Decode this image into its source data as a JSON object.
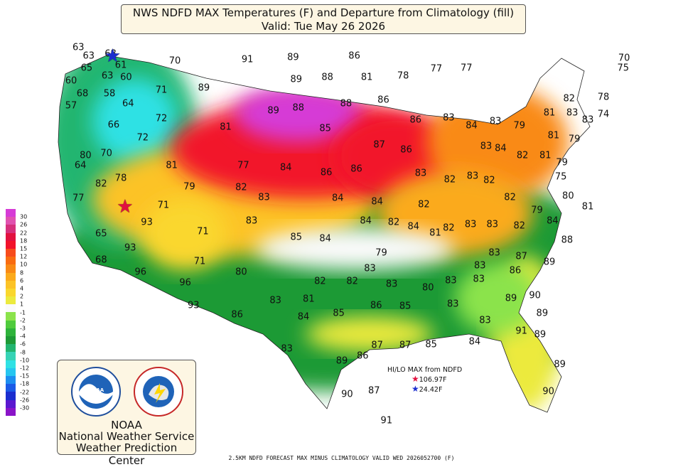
{
  "title": {
    "line1": "NWS NDFD MAX Temperatures (F) and Departure from Climatology (fill)",
    "line2": "Valid: Tue May 26 2026"
  },
  "temperature_labels": [
    {
      "text": "63",
      "lon": -124.3,
      "lat": 48.3
    },
    {
      "text": "63",
      "lon": -123.3,
      "lat": 47.6
    },
    {
      "text": "68",
      "lon": -121.2,
      "lat": 47.8
    },
    {
      "text": "65",
      "lon": -123.5,
      "lat": 46.6
    },
    {
      "text": "61",
      "lon": -120.2,
      "lat": 46.8
    },
    {
      "text": "70",
      "lon": -115.0,
      "lat": 47.2
    },
    {
      "text": "91",
      "lon": -108.0,
      "lat": 47.3
    },
    {
      "text": "89",
      "lon": -103.6,
      "lat": 47.5
    },
    {
      "text": "86",
      "lon": -97.7,
      "lat": 47.6
    },
    {
      "text": "60",
      "lon": -125.0,
      "lat": 45.5
    },
    {
      "text": "63",
      "lon": -121.5,
      "lat": 45.9
    },
    {
      "text": "60",
      "lon": -119.7,
      "lat": 45.8
    },
    {
      "text": "68",
      "lon": -123.9,
      "lat": 44.4
    },
    {
      "text": "58",
      "lon": -121.3,
      "lat": 44.4
    },
    {
      "text": "71",
      "lon": -116.3,
      "lat": 44.7
    },
    {
      "text": "89",
      "lon": -112.2,
      "lat": 44.9
    },
    {
      "text": "89",
      "lon": -103.3,
      "lat": 45.6
    },
    {
      "text": "88",
      "lon": -100.3,
      "lat": 45.8
    },
    {
      "text": "81",
      "lon": -96.5,
      "lat": 45.8
    },
    {
      "text": "78",
      "lon": -93.0,
      "lat": 45.9
    },
    {
      "text": "77",
      "lon": -89.8,
      "lat": 46.5
    },
    {
      "text": "57",
      "lon": -125.0,
      "lat": 43.4
    },
    {
      "text": "64",
      "lon": -119.5,
      "lat": 43.6
    },
    {
      "text": "72",
      "lon": -116.3,
      "lat": 42.3
    },
    {
      "text": "89",
      "lon": -105.5,
      "lat": 43.0
    },
    {
      "text": "88",
      "lon": -103.1,
      "lat": 43.2
    },
    {
      "text": "88",
      "lon": -98.5,
      "lat": 43.6
    },
    {
      "text": "86",
      "lon": -94.9,
      "lat": 43.9
    },
    {
      "text": "66",
      "lon": -120.9,
      "lat": 41.8
    },
    {
      "text": "72",
      "lon": -118.1,
      "lat": 40.7
    },
    {
      "text": "81",
      "lon": -110.1,
      "lat": 41.6
    },
    {
      "text": "85",
      "lon": -100.5,
      "lat": 41.5
    },
    {
      "text": "86",
      "lon": -91.8,
      "lat": 42.2
    },
    {
      "text": "83",
      "lon": -88.6,
      "lat": 42.4
    },
    {
      "text": "84",
      "lon": -86.4,
      "lat": 41.7
    },
    {
      "text": "83",
      "lon": -84.1,
      "lat": 42.1
    },
    {
      "text": "87",
      "lon": -95.3,
      "lat": 40.1
    },
    {
      "text": "86",
      "lon": -92.7,
      "lat": 39.7
    },
    {
      "text": "80",
      "lon": -123.6,
      "lat": 39.2
    },
    {
      "text": "70",
      "lon": -121.6,
      "lat": 39.4
    },
    {
      "text": "64",
      "lon": -124.1,
      "lat": 38.4
    },
    {
      "text": "81",
      "lon": -115.3,
      "lat": 38.4
    },
    {
      "text": "77",
      "lon": -108.4,
      "lat": 38.4
    },
    {
      "text": "84",
      "lon": -104.3,
      "lat": 38.2
    },
    {
      "text": "86",
      "lon": -100.4,
      "lat": 37.8
    },
    {
      "text": "86",
      "lon": -97.5,
      "lat": 38.1
    },
    {
      "text": "83",
      "lon": -91.3,
      "lat": 37.7
    },
    {
      "text": "82",
      "lon": -88.5,
      "lat": 37.2
    },
    {
      "text": "78",
      "lon": -120.2,
      "lat": 37.3
    },
    {
      "text": "82",
      "lon": -122.1,
      "lat": 36.8
    },
    {
      "text": "79",
      "lon": -113.6,
      "lat": 36.6
    },
    {
      "text": "82",
      "lon": -108.6,
      "lat": 36.5
    },
    {
      "text": "83",
      "lon": -106.4,
      "lat": 35.7
    },
    {
      "text": "84",
      "lon": -99.3,
      "lat": 35.6
    },
    {
      "text": "84",
      "lon": -95.5,
      "lat": 35.3
    },
    {
      "text": "82",
      "lon": -91.0,
      "lat": 35.1
    },
    {
      "text": "77",
      "lon": -124.3,
      "lat": 35.6
    },
    {
      "text": "71",
      "lon": -116.1,
      "lat": 35.0
    },
    {
      "text": "93",
      "lon": -117.7,
      "lat": 33.6
    },
    {
      "text": "84",
      "lon": -96.6,
      "lat": 33.7
    },
    {
      "text": "82",
      "lon": -93.9,
      "lat": 33.6
    },
    {
      "text": "84",
      "lon": -92.0,
      "lat": 33.2
    },
    {
      "text": "81",
      "lon": -89.9,
      "lat": 32.7
    },
    {
      "text": "82",
      "lon": -88.6,
      "lat": 33.1
    },
    {
      "text": "83",
      "lon": -107.6,
      "lat": 33.7
    },
    {
      "text": "71",
      "lon": -112.3,
      "lat": 32.8
    },
    {
      "text": "85",
      "lon": -103.3,
      "lat": 32.3
    },
    {
      "text": "84",
      "lon": -100.5,
      "lat": 32.2
    },
    {
      "text": "79",
      "lon": -95.1,
      "lat": 31.0
    },
    {
      "text": "65",
      "lon": -122.1,
      "lat": 32.6
    },
    {
      "text": "93",
      "lon": -119.3,
      "lat": 31.4
    },
    {
      "text": "68",
      "lon": -122.1,
      "lat": 30.4
    },
    {
      "text": "96",
      "lon": -118.3,
      "lat": 29.4
    },
    {
      "text": "71",
      "lon": -112.6,
      "lat": 30.3
    },
    {
      "text": "96",
      "lon": -114.0,
      "lat": 28.5
    },
    {
      "text": "80",
      "lon": -108.6,
      "lat": 29.4
    },
    {
      "text": "82",
      "lon": -101.0,
      "lat": 28.6
    },
    {
      "text": "82",
      "lon": -97.9,
      "lat": 28.6
    },
    {
      "text": "83",
      "lon": -96.2,
      "lat": 29.7
    },
    {
      "text": "83",
      "lon": -94.1,
      "lat": 28.4
    },
    {
      "text": "80",
      "lon": -90.6,
      "lat": 28.1
    },
    {
      "text": "83",
      "lon": -88.4,
      "lat": 28.7
    },
    {
      "text": "93",
      "lon": -113.2,
      "lat": 26.6
    },
    {
      "text": "83",
      "lon": -105.3,
      "lat": 27.0
    },
    {
      "text": "81",
      "lon": -102.1,
      "lat": 27.1
    },
    {
      "text": "86",
      "lon": -109.0,
      "lat": 25.8
    },
    {
      "text": "84",
      "lon": -102.6,
      "lat": 25.6
    },
    {
      "text": "85",
      "lon": -99.2,
      "lat": 25.9
    },
    {
      "text": "86",
      "lon": -95.6,
      "lat": 26.6
    },
    {
      "text": "85",
      "lon": -92.8,
      "lat": 26.5
    },
    {
      "text": "83",
      "lon": -88.2,
      "lat": 26.7
    },
    {
      "text": "83",
      "lon": -104.2,
      "lat": 22.9
    },
    {
      "text": "89",
      "lon": -98.9,
      "lat": 21.9
    },
    {
      "text": "86",
      "lon": -96.9,
      "lat": 22.3
    },
    {
      "text": "87",
      "lon": -95.5,
      "lat": 23.2
    },
    {
      "text": "87",
      "lon": -92.8,
      "lat": 23.2
    },
    {
      "text": "85",
      "lon": -90.3,
      "lat": 23.3
    },
    {
      "text": "84",
      "lon": -86.1,
      "lat": 23.5
    },
    {
      "text": "83",
      "lon": -85.1,
      "lat": 25.3
    },
    {
      "text": "90",
      "lon": -98.4,
      "lat": 19.1
    },
    {
      "text": "87",
      "lon": -95.8,
      "lat": 19.4
    },
    {
      "text": "91",
      "lon": -94.6,
      "lat": 16.9
    },
    {
      "text": "77",
      "lon": -86.9,
      "lat": 46.6
    },
    {
      "text": "70",
      "lon": -71.7,
      "lat": 47.4
    },
    {
      "text": "75",
      "lon": -71.8,
      "lat": 46.6
    },
    {
      "text": "82",
      "lon": -77.0,
      "lat": 44.0
    },
    {
      "text": "78",
      "lon": -73.7,
      "lat": 44.1
    },
    {
      "text": "81",
      "lon": -78.9,
      "lat": 42.8
    },
    {
      "text": "83",
      "lon": -76.7,
      "lat": 42.8
    },
    {
      "text": "83",
      "lon": -75.2,
      "lat": 42.2
    },
    {
      "text": "74",
      "lon": -73.7,
      "lat": 42.7
    },
    {
      "text": "79",
      "lon": -81.8,
      "lat": 41.7
    },
    {
      "text": "81",
      "lon": -78.5,
      "lat": 40.9
    },
    {
      "text": "79",
      "lon": -76.5,
      "lat": 40.6
    },
    {
      "text": "83",
      "lon": -85.0,
      "lat": 40.0
    },
    {
      "text": "84",
      "lon": -83.6,
      "lat": 39.8
    },
    {
      "text": "82",
      "lon": -81.5,
      "lat": 39.2
    },
    {
      "text": "81",
      "lon": -79.3,
      "lat": 39.2
    },
    {
      "text": "79",
      "lon": -77.7,
      "lat": 38.6
    },
    {
      "text": "75",
      "lon": -77.8,
      "lat": 37.4
    },
    {
      "text": "83",
      "lon": -86.3,
      "lat": 37.5
    },
    {
      "text": "82",
      "lon": -84.7,
      "lat": 37.1
    },
    {
      "text": "82",
      "lon": -82.7,
      "lat": 35.7
    },
    {
      "text": "80",
      "lon": -77.1,
      "lat": 35.8
    },
    {
      "text": "79",
      "lon": -80.1,
      "lat": 34.6
    },
    {
      "text": "84",
      "lon": -78.6,
      "lat": 33.7
    },
    {
      "text": "81",
      "lon": -75.2,
      "lat": 34.9
    },
    {
      "text": "83",
      "lon": -86.5,
      "lat": 33.4
    },
    {
      "text": "83",
      "lon": -84.4,
      "lat": 33.4
    },
    {
      "text": "82",
      "lon": -81.8,
      "lat": 33.3
    },
    {
      "text": "88",
      "lon": -77.2,
      "lat": 32.1
    },
    {
      "text": "83",
      "lon": -84.2,
      "lat": 31.0
    },
    {
      "text": "87",
      "lon": -81.6,
      "lat": 30.7
    },
    {
      "text": "89",
      "lon": -78.9,
      "lat": 30.2
    },
    {
      "text": "86",
      "lon": -82.2,
      "lat": 29.5
    },
    {
      "text": "83",
      "lon": -85.6,
      "lat": 29.9
    },
    {
      "text": "83",
      "lon": -85.7,
      "lat": 28.8
    },
    {
      "text": "89",
      "lon": -82.6,
      "lat": 27.2
    },
    {
      "text": "90",
      "lon": -80.3,
      "lat": 27.4
    },
    {
      "text": "89",
      "lon": -79.6,
      "lat": 25.9
    },
    {
      "text": "91",
      "lon": -81.6,
      "lat": 24.4
    },
    {
      "text": "89",
      "lon": -79.8,
      "lat": 24.1
    },
    {
      "text": "89",
      "lon": -77.9,
      "lat": 21.6
    },
    {
      "text": "90",
      "lon": -79.0,
      "lat": 19.3
    }
  ],
  "colorbar": {
    "colors": [
      "#d63bd6",
      "#e052b0",
      "#d6307d",
      "#e2113f",
      "#f2132b",
      "#f74c1c",
      "#f96c11",
      "#f98a15",
      "#fbaa1c",
      "#fcc326",
      "#fad72d",
      "#ecea3e",
      "#fafafa",
      "#8be34b",
      "#4fcb3d",
      "#2eb33b",
      "#1e9a36",
      "#22b56f",
      "#36d3b5",
      "#2fe1e4",
      "#26c6f0",
      "#1d8ef0",
      "#1b5ae6",
      "#1b2ecf",
      "#5b18cf",
      "#8a14c8"
    ],
    "labels": [
      "30",
      "26",
      "22",
      "18",
      "15",
      "12",
      "10",
      "8",
      "6",
      "4",
      "2",
      "1",
      "-1",
      "-2",
      "-3",
      "-4",
      "-6",
      "-8",
      "-10",
      "-12",
      "-15",
      "-18",
      "-22",
      "-26",
      "-30"
    ]
  },
  "legend": {
    "noaa": "NOAA",
    "nws": "National Weather Service",
    "wpc": "Weather Prediction Center",
    "logo_left_icon": "noaa-logo",
    "logo_right_icon": "nws-logo"
  },
  "hilo": {
    "title": "HI/LO MAX from NDFD",
    "hi": "106.97F",
    "lo": "24.42F",
    "hi_color": "#e2113f",
    "lo_color": "#1b2ecf"
  },
  "markers": {
    "hi": {
      "lon": -119.8,
      "lat": 34.9
    },
    "lo": {
      "lon": -121.0,
      "lat": 47.6
    }
  },
  "footer": "2.5KM NDFD FORECAST MAX MINUS CLIMATOLOGY VALID WED 2026052700 (F)"
}
